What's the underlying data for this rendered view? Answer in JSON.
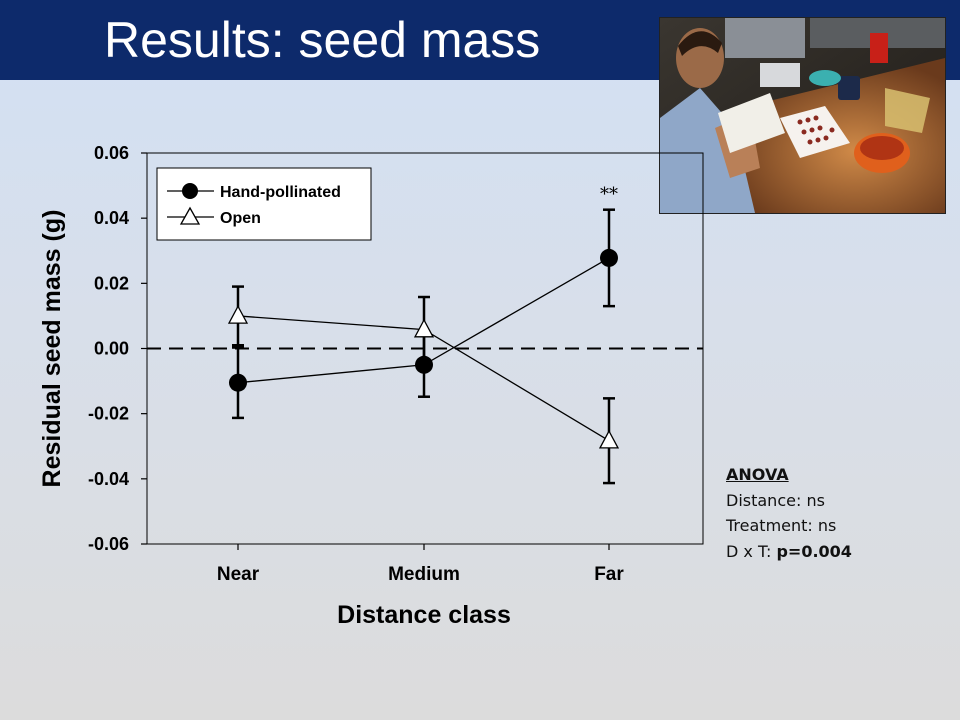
{
  "slide": {
    "title": "Results: seed mass",
    "photo_alt": "researcher-weighing-seeds-photo"
  },
  "anova": {
    "title": "ANOVA",
    "lines": [
      "Distance: ns",
      "Treatment: ns"
    ],
    "interaction_label": "D x T:",
    "interaction_p": "p=0.004"
  },
  "chart_data": {
    "type": "line",
    "xlabel": "Distance class",
    "ylabel": "Residual seed mass (g)",
    "categories": [
      "Near",
      "Medium",
      "Far"
    ],
    "ylim": [
      -0.06,
      0.06
    ],
    "yticks": [
      "0.06",
      "0.04",
      "0.02",
      "0.00",
      "-0.02",
      "-0.04",
      "-0.06"
    ],
    "ytick_values": [
      0.06,
      0.04,
      0.02,
      0.0,
      -0.02,
      -0.04,
      -0.06
    ],
    "reference_line": {
      "y": 0.0,
      "style": "dashed"
    },
    "legend_position": "top-left",
    "series": [
      {
        "name": "Hand-pollinated",
        "marker": "filled-circle",
        "values": [
          -0.0105,
          -0.005,
          0.0278
        ],
        "errors": [
          0.0108,
          0.0098,
          0.0148
        ]
      },
      {
        "name": "Open",
        "marker": "open-triangle",
        "values": [
          0.01,
          0.0058,
          -0.0283
        ],
        "errors": [
          0.009,
          0.01,
          0.013
        ]
      }
    ],
    "annotations": [
      {
        "text": "**",
        "category": "Far"
      }
    ]
  }
}
